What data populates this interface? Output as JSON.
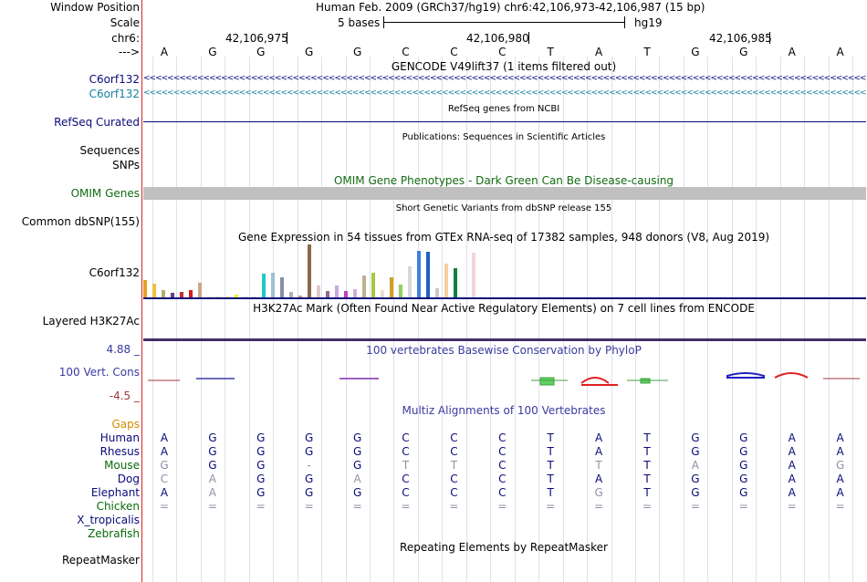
{
  "header": {
    "window_position_label": "Window Position",
    "window_position_value": "Human Feb. 2009 (GRCh37/hg19)   chr6:42,106,973-42,106,987 (15 bp)",
    "scale_label": "Scale",
    "scale_value": "5 bases",
    "scale_assembly": "hg19",
    "chr_label": "chr6:",
    "coords": [
      "42,106,975",
      "42,106,980",
      "42,106,985"
    ],
    "strand_label": "--->",
    "bases": [
      "A",
      "G",
      "G",
      "G",
      "G",
      "C",
      "C",
      "C",
      "T",
      "A",
      "T",
      "G",
      "G",
      "A",
      "A"
    ]
  },
  "tracks": {
    "gencode_title": "GENCODE V49lift37 (1 items filtered out)",
    "gencode_gene1": "C6orf132",
    "gencode_gene2": "C6orf132",
    "refseq_label": "RefSeq Curated",
    "refseq_title": "RefSeq genes from NCBI",
    "pubs_title": "Publications: Sequences in Scientific Articles",
    "sequences_label": "Sequences",
    "snps_label": "SNPs",
    "omim_title": "OMIM Gene Phenotypes - Dark Green Can Be Disease-causing",
    "omim_label": "OMIM Genes",
    "dbsnp_title": "Short Genetic Variants from dbSNP release 155",
    "dbsnp_label": "Common dbSNP(155)",
    "gtex_title": "Gene Expression in 54 tissues from GTEx RNA-seq of 17382 samples, 948 donors (V8, Aug 2019)",
    "gtex_label": "C6orf132",
    "h3k27_title": "H3K27Ac Mark (Often Found Near Active Regulatory Elements) on 7 cell lines from ENCODE",
    "h3k27_label": "Layered H3K27Ac",
    "phylop_max": "4.88 _",
    "phylop_label": "100 Vert. Cons",
    "phylop_min": "-4.5 _",
    "phylop_title": "100 vertebrates Basewise Conservation by PhyloP",
    "multiz_title": "Multiz Alignments of 100 Vertebrates",
    "gaps_label": "Gaps",
    "repeat_title": "Repeating Elements by RepeatMasker",
    "repeat_label": "RepeatMasker"
  },
  "species": [
    {
      "name": "Human",
      "color": "#0a0a7a",
      "bases": [
        "A",
        "G",
        "G",
        "G",
        "G",
        "C",
        "C",
        "C",
        "T",
        "A",
        "T",
        "G",
        "G",
        "A",
        "A"
      ]
    },
    {
      "name": "Rhesus",
      "color": "#0a0a7a",
      "bases": [
        "A",
        "G",
        "G",
        "G",
        "G",
        "C",
        "C",
        "C",
        "T",
        "A",
        "T",
        "G",
        "G",
        "A",
        "A"
      ]
    },
    {
      "name": "Mouse",
      "color": "#0a6a0a",
      "bases": [
        "G",
        "G",
        "G",
        "-",
        "G",
        "T",
        "T",
        "C",
        "T",
        "T",
        "T",
        "A",
        "G",
        "A",
        "G"
      ]
    },
    {
      "name": "Dog",
      "color": "#0a0a7a",
      "bases": [
        "C",
        "A",
        "G",
        "G",
        "A",
        "C",
        "C",
        "C",
        "T",
        "A",
        "T",
        "G",
        "G",
        "A",
        "A"
      ]
    },
    {
      "name": "Elephant",
      "color": "#0a0a7a",
      "bases": [
        "A",
        "A",
        "G",
        "G",
        "G",
        "C",
        "C",
        "C",
        "T",
        "G",
        "T",
        "G",
        "G",
        "A",
        "A"
      ]
    },
    {
      "name": "Chicken",
      "color": "#0a6a0a",
      "bases": [
        "=",
        "=",
        "=",
        "=",
        "=",
        "=",
        "=",
        "=",
        "=",
        "=",
        "=",
        "=",
        "=",
        "=",
        "="
      ]
    },
    {
      "name": "X_tropicalis",
      "color": "#0a0a7a",
      "bases": []
    },
    {
      "name": "Zebrafish",
      "color": "#0a6a0a",
      "bases": []
    }
  ],
  "species_dim": [
    [
      false,
      false,
      false,
      false,
      false,
      false,
      false,
      false,
      false,
      false,
      false,
      false,
      false,
      false,
      false
    ],
    [
      false,
      false,
      false,
      false,
      false,
      false,
      false,
      false,
      false,
      false,
      false,
      false,
      false,
      false,
      false
    ],
    [
      true,
      false,
      false,
      true,
      false,
      true,
      true,
      false,
      false,
      true,
      false,
      true,
      false,
      false,
      true
    ],
    [
      true,
      true,
      false,
      false,
      true,
      false,
      false,
      false,
      false,
      false,
      false,
      false,
      false,
      false,
      false
    ],
    [
      false,
      true,
      false,
      false,
      false,
      false,
      false,
      false,
      false,
      true,
      false,
      false,
      false,
      false,
      false
    ],
    [
      true,
      true,
      true,
      true,
      true,
      true,
      true,
      true,
      true,
      true,
      true,
      true,
      true,
      true,
      true
    ]
  ],
  "gtex_values": [
    {
      "v": 0.32,
      "c": "#e8a020"
    },
    {
      "v": 0.26,
      "c": "#f0c040"
    },
    {
      "v": 0.14,
      "c": "#b0b070"
    },
    {
      "v": 0.08,
      "c": "#6a3a8a"
    },
    {
      "v": 0.1,
      "c": "#c03030"
    },
    {
      "v": 0.13,
      "c": "#d02020"
    },
    {
      "v": 0.28,
      "c": "#c8a888"
    },
    {
      "v": 0.02,
      "c": "#e8e8c0"
    },
    {
      "v": 0.02,
      "c": "#f0e090"
    },
    {
      "v": 0.02,
      "c": "#f0f0a0"
    },
    {
      "v": 0.05,
      "c": "#f0f020"
    },
    {
      "v": 0.02,
      "c": "#f0e0c0"
    },
    {
      "v": 0.02,
      "c": "#e0e0e0"
    },
    {
      "v": 0.44,
      "c": "#20c8c8"
    },
    {
      "v": 0.46,
      "c": "#a0c0d0"
    },
    {
      "v": 0.38,
      "c": "#8890a0"
    },
    {
      "v": 0.1,
      "c": "#b0b0b0"
    },
    {
      "v": 0.04,
      "c": "#c8a080"
    },
    {
      "v": 1.0,
      "c": "#8a6a4a"
    },
    {
      "v": 0.22,
      "c": "#e0c8c8"
    },
    {
      "v": 0.12,
      "c": "#8a6a8a"
    },
    {
      "v": 0.22,
      "c": "#c8a8e0"
    },
    {
      "v": 0.12,
      "c": "#c040c0"
    },
    {
      "v": 0.16,
      "c": "#d0b0d0"
    },
    {
      "v": 0.42,
      "c": "#c0b090"
    },
    {
      "v": 0.46,
      "c": "#a8c840"
    },
    {
      "v": 0.14,
      "c": "#e8e0d0"
    },
    {
      "v": 0.38,
      "c": "#d0a020"
    },
    {
      "v": 0.24,
      "c": "#90d060"
    },
    {
      "v": 0.58,
      "c": "#d8d8d8"
    },
    {
      "v": 0.88,
      "c": "#4080e0"
    },
    {
      "v": 0.86,
      "c": "#2060c0"
    },
    {
      "v": 0.18,
      "c": "#c8c8c8"
    },
    {
      "v": 0.64,
      "c": "#f8d0a0"
    },
    {
      "v": 0.56,
      "c": "#108040"
    },
    {
      "v": 0.02,
      "c": "#f0f0f0"
    },
    {
      "v": 0.84,
      "c": "#f0d8d8"
    }
  ],
  "colors": {
    "gene_blue": "#0a0a7a",
    "gene_teal": "#167fa0",
    "omim_green": "#116b11",
    "phylop_blue": "#3a3aa0",
    "phylop_red": "#a03a3a",
    "gaps_orange": "#d48a00",
    "axis_red": "#e02020"
  }
}
